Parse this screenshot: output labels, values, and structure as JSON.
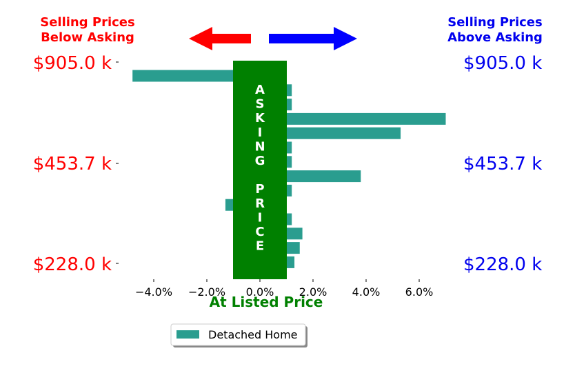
{
  "chart_data": {
    "type": "bar",
    "orientation": "horizontal",
    "categories": [
      "$905.0 k",
      "",
      "",
      "",
      "",
      "",
      "",
      "$453.7 k",
      "",
      "",
      "",
      "",
      "",
      "",
      "$228.0 k"
    ],
    "series": [
      {
        "name": "Detached Home",
        "color": "#2a9d8f",
        "values": [
          -4.8,
          1.2,
          1.2,
          7.0,
          5.3,
          1.2,
          1.2,
          3.8,
          1.2,
          -1.3,
          1.2,
          1.6,
          1.5,
          1.3,
          0
        ]
      }
    ],
    "xlim": [
      -5.0,
      7.0
    ],
    "xticks": [
      -4.0,
      -2.0,
      0.0,
      2.0,
      4.0,
      6.0
    ],
    "xtick_labels": [
      "−4.0%",
      "−2.0%",
      "0.0%",
      "2.0%",
      "4.0%",
      "6.0%"
    ],
    "grid": false,
    "legend_position": "bottom-center"
  },
  "labels": {
    "left_header": [
      "Selling Prices",
      "Below Asking"
    ],
    "right_header": [
      "Selling Prices",
      "Above Asking"
    ],
    "left_prices": [
      "$905.0 k",
      "$453.7 k",
      "$228.0 k"
    ],
    "right_prices": [
      "$905.0 k",
      "$453.7 k",
      "$228.0 k"
    ],
    "asking_letters": [
      "A",
      "S",
      "K",
      "I",
      "N",
      "G",
      "",
      "P",
      "R",
      "I",
      "C",
      "E"
    ],
    "bottom_label": "At Listed Price"
  },
  "colors": {
    "below": "#ff0000",
    "above": "#0000ee",
    "asking_band": "#008000",
    "bottom_label": "#008000"
  }
}
